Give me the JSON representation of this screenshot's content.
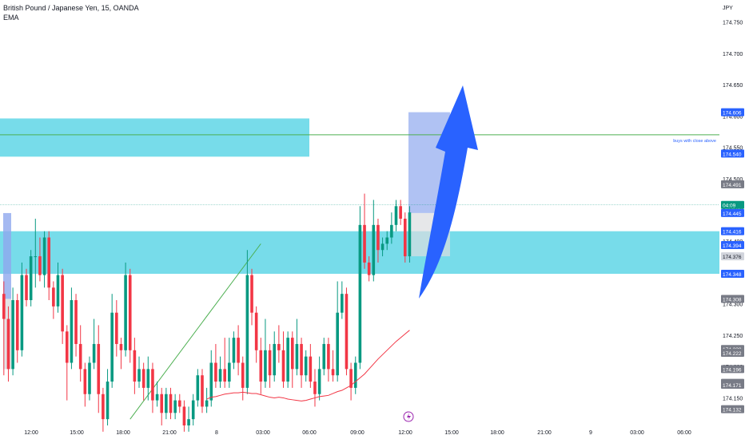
{
  "header": {
    "symbol_line": "British Pound / Japanese Yen, 15, OANDA",
    "indicator": "EMA"
  },
  "colors": {
    "up": "#089981",
    "down": "#f23645",
    "zone": "#5fd6e6",
    "ema": "#f23645",
    "hline": "#4caf50",
    "trendline": "#4caf50",
    "arrow": "#2962ff",
    "target_box": "#8fa8ee",
    "stop_box": "#dcdde0",
    "label_blue": "#2962ff",
    "label_gray": "#787b86",
    "label_green": "#089981",
    "axis_text": "#131722"
  },
  "chart_data": {
    "type": "candlestick",
    "ylabel": "JPY",
    "ylim": [
      174.12,
      174.78
    ],
    "x_ticks": [
      "12:00",
      "15:00",
      "18:00",
      "21:00",
      "8",
      "03:00",
      "06:00",
      "09:00",
      "12:00",
      "15:00",
      "18:00",
      "21:00",
      "9",
      "03:00",
      "06:00"
    ],
    "y_ticks": [
      "174.750",
      "174.700",
      "174.650",
      "174.600",
      "174.550",
      "174.500",
      "174.450",
      "174.400",
      "174.350",
      "174.300",
      "174.250",
      "174.200",
      "174.150"
    ],
    "price_labels": [
      {
        "text": "174.606",
        "price": 174.606,
        "style": "blue"
      },
      {
        "text": "174.540",
        "price": 174.54,
        "style": "blue"
      },
      {
        "text": "174.491",
        "price": 174.491,
        "style": "gray"
      },
      {
        "text": "04:09",
        "price": 174.458,
        "style": "green"
      },
      {
        "text": "174.445",
        "price": 174.445,
        "style": "blue"
      },
      {
        "text": "174.416",
        "price": 174.416,
        "style": "blue"
      },
      {
        "text": "174.394",
        "price": 174.394,
        "style": "blue"
      },
      {
        "text": "174.376",
        "price": 174.376,
        "style": "light"
      },
      {
        "text": "174.348",
        "price": 174.348,
        "style": "blue"
      },
      {
        "text": "174.308",
        "price": 174.308,
        "style": "gray"
      },
      {
        "text": "174.228",
        "price": 174.228,
        "style": "gray"
      },
      {
        "text": "174.222",
        "price": 174.222,
        "style": "gray"
      },
      {
        "text": "174.196",
        "price": 174.196,
        "style": "gray"
      },
      {
        "text": "174.174",
        "price": 174.174,
        "style": "gray"
      },
      {
        "text": "174.171",
        "price": 174.171,
        "style": "gray"
      },
      {
        "text": "174.132",
        "price": 174.132,
        "style": "gray"
      }
    ],
    "annotation": "buys with close above",
    "horizontal_line_price": 174.57,
    "zones": [
      {
        "from": 174.535,
        "to": 174.596,
        "x_end_slot": 12
      },
      {
        "from": 174.348,
        "to": 174.416,
        "x_end_slot": -1
      }
    ],
    "position": {
      "entry": 174.445,
      "target": 174.606,
      "stop": 174.376
    },
    "candles": [
      [
        174.316,
        174.276,
        174.336,
        174.186
      ],
      [
        174.276,
        174.196,
        174.296,
        174.176
      ],
      [
        174.196,
        174.306,
        174.326,
        174.186
      ],
      [
        174.306,
        174.226,
        174.316,
        174.206
      ],
      [
        174.226,
        174.346,
        174.366,
        174.216
      ],
      [
        174.346,
        174.306,
        174.356,
        174.296
      ],
      [
        174.306,
        174.376,
        174.386,
        174.296
      ],
      [
        174.376,
        174.376,
        174.436,
        174.326
      ],
      [
        174.376,
        174.346,
        174.406,
        174.336
      ],
      [
        174.346,
        174.406,
        174.416,
        174.326
      ],
      [
        174.406,
        174.326,
        174.416,
        174.306
      ],
      [
        174.326,
        174.296,
        174.336,
        174.276
      ],
      [
        174.296,
        174.346,
        174.366,
        174.286
      ],
      [
        174.346,
        174.256,
        174.356,
        174.236
      ],
      [
        174.256,
        174.206,
        174.266,
        174.146
      ],
      [
        174.206,
        174.306,
        174.326,
        174.196
      ],
      [
        174.306,
        174.236,
        174.316,
        174.216
      ],
      [
        174.236,
        174.196,
        174.266,
        174.176
      ],
      [
        174.196,
        174.156,
        174.206,
        174.136
      ],
      [
        174.156,
        174.206,
        174.216,
        174.146
      ],
      [
        174.206,
        174.236,
        174.276,
        174.196
      ],
      [
        174.236,
        174.156,
        174.266,
        174.126
      ],
      [
        174.156,
        174.116,
        174.166,
        174.096
      ],
      [
        174.116,
        174.176,
        174.196,
        174.106
      ],
      [
        174.176,
        174.286,
        174.316,
        174.166
      ],
      [
        174.286,
        174.236,
        174.306,
        174.216
      ],
      [
        174.236,
        174.226,
        174.246,
        174.196
      ],
      [
        174.226,
        174.346,
        174.366,
        174.216
      ],
      [
        174.346,
        174.226,
        174.356,
        174.206
      ],
      [
        174.226,
        174.176,
        174.246,
        174.156
      ],
      [
        174.176,
        174.196,
        174.216,
        174.166
      ],
      [
        174.196,
        174.166,
        174.206,
        174.146
      ],
      [
        174.166,
        174.196,
        174.216,
        174.146
      ],
      [
        174.196,
        174.146,
        174.206,
        174.126
      ],
      [
        174.146,
        174.156,
        174.176,
        174.136
      ],
      [
        174.156,
        174.126,
        174.166,
        174.106
      ],
      [
        174.126,
        174.156,
        174.166,
        174.116
      ],
      [
        174.156,
        174.126,
        174.166,
        174.116
      ],
      [
        174.126,
        174.146,
        174.156,
        174.116
      ],
      [
        174.146,
        174.136,
        174.156,
        174.126
      ],
      [
        174.136,
        174.106,
        174.146,
        174.096
      ],
      [
        174.106,
        174.116,
        174.136,
        174.096
      ],
      [
        174.116,
        174.146,
        174.156,
        174.106
      ],
      [
        174.146,
        174.186,
        174.196,
        174.136
      ],
      [
        174.186,
        174.136,
        174.196,
        174.126
      ],
      [
        174.136,
        174.146,
        174.166,
        174.126
      ],
      [
        174.146,
        174.206,
        174.226,
        174.136
      ],
      [
        174.206,
        174.176,
        174.236,
        174.166
      ],
      [
        174.176,
        174.196,
        174.216,
        174.166
      ],
      [
        174.196,
        174.176,
        174.246,
        174.166
      ],
      [
        174.176,
        174.206,
        174.246,
        174.166
      ],
      [
        174.206,
        174.246,
        174.256,
        174.196
      ],
      [
        174.246,
        174.206,
        174.266,
        174.186
      ],
      [
        174.206,
        174.166,
        174.216,
        174.146
      ],
      [
        174.166,
        174.346,
        174.386,
        174.156
      ],
      [
        174.346,
        174.286,
        174.356,
        174.266
      ],
      [
        174.286,
        174.226,
        174.296,
        174.206
      ],
      [
        174.226,
        174.176,
        174.246,
        174.156
      ],
      [
        174.176,
        174.226,
        174.276,
        174.166
      ],
      [
        174.226,
        174.186,
        174.236,
        174.166
      ],
      [
        174.186,
        174.236,
        174.256,
        174.176
      ],
      [
        174.236,
        174.226,
        174.266,
        174.206
      ],
      [
        174.226,
        174.176,
        174.256,
        174.166
      ],
      [
        174.176,
        174.246,
        174.256,
        174.166
      ],
      [
        174.246,
        174.196,
        174.256,
        174.166
      ],
      [
        174.196,
        174.236,
        174.276,
        174.186
      ],
      [
        174.236,
        174.186,
        174.246,
        174.166
      ],
      [
        174.186,
        174.216,
        174.226,
        174.176
      ],
      [
        174.216,
        174.176,
        174.236,
        174.166
      ],
      [
        174.176,
        174.156,
        174.196,
        174.136
      ],
      [
        174.156,
        174.196,
        174.216,
        174.146
      ],
      [
        174.196,
        174.236,
        174.246,
        174.186
      ],
      [
        174.236,
        174.196,
        174.246,
        174.176
      ],
      [
        174.196,
        174.186,
        174.226,
        174.176
      ],
      [
        174.186,
        174.286,
        174.336,
        174.176
      ],
      [
        174.286,
        174.316,
        174.336,
        174.276
      ],
      [
        174.316,
        174.196,
        174.326,
        174.186
      ],
      [
        174.196,
        174.166,
        174.206,
        174.146
      ],
      [
        174.166,
        174.206,
        174.216,
        174.156
      ],
      [
        174.206,
        174.426,
        174.456,
        174.196
      ],
      [
        174.426,
        174.366,
        174.476,
        174.356
      ],
      [
        174.366,
        174.346,
        174.376,
        174.336
      ],
      [
        174.346,
        174.426,
        174.466,
        174.336
      ],
      [
        174.426,
        174.386,
        174.436,
        174.366
      ],
      [
        174.386,
        174.396,
        174.406,
        174.376
      ],
      [
        174.396,
        174.406,
        174.416,
        174.386
      ],
      [
        174.406,
        174.426,
        174.446,
        174.396
      ],
      [
        174.426,
        174.456,
        174.466,
        174.416
      ],
      [
        174.456,
        174.436,
        174.466,
        174.426
      ],
      [
        174.436,
        174.376,
        174.446,
        174.366
      ],
      [
        174.376,
        174.446,
        174.456,
        174.366
      ]
    ],
    "ema": [
      174.148,
      174.151,
      174.152,
      174.154,
      174.156,
      174.157,
      174.158,
      174.158,
      174.159,
      174.158,
      174.157,
      174.157,
      174.155,
      174.153,
      174.151,
      174.15,
      174.151,
      174.15,
      174.148,
      174.147,
      174.146,
      174.145,
      174.146,
      174.148,
      174.15,
      174.152,
      174.153,
      174.154,
      174.157,
      174.16,
      174.162,
      174.166,
      174.17,
      174.176,
      174.182,
      174.188,
      174.196,
      174.204,
      174.212,
      174.219,
      174.226,
      174.233,
      174.24,
      174.246,
      174.252,
      174.258
    ]
  }
}
